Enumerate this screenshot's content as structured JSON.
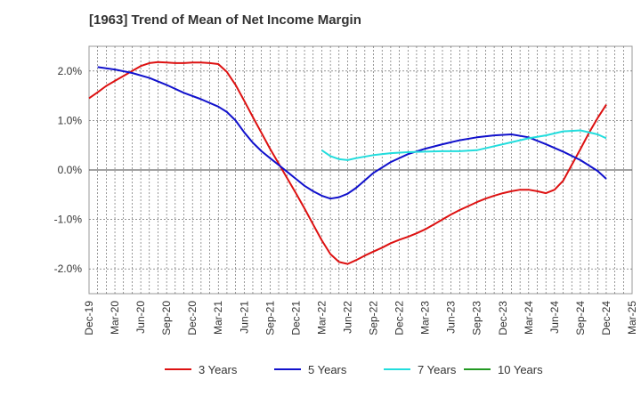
{
  "chart_data": {
    "type": "line",
    "title": "[1963]  Trend of Mean of Net Income Margin",
    "xlabel": "",
    "ylabel": "",
    "x_ticks": [
      "Dec-19",
      "Mar-20",
      "Jun-20",
      "Sep-20",
      "Dec-20",
      "Mar-21",
      "Jun-21",
      "Sep-21",
      "Dec-21",
      "Mar-22",
      "Jun-22",
      "Sep-22",
      "Dec-22",
      "Mar-23",
      "Jun-23",
      "Sep-23",
      "Dec-23",
      "Mar-24",
      "Jun-24",
      "Sep-24",
      "Dec-24",
      "Mar-25"
    ],
    "y_ticks": [
      "2.0%",
      "1.0%",
      "0.0%",
      "-1.0%",
      "-2.0%"
    ],
    "y_tick_values": [
      2.0,
      1.0,
      0.0,
      -1.0,
      -2.0
    ],
    "ylim": [
      -2.5,
      2.5
    ],
    "grid": true,
    "legend_position": "bottom",
    "series": [
      {
        "name": "3 Years",
        "color": "#dd1111",
        "x": [
          "Dec-19",
          "Jan-20",
          "Feb-20",
          "Mar-20",
          "Apr-20",
          "May-20",
          "Jun-20",
          "Jul-20",
          "Aug-20",
          "Sep-20",
          "Oct-20",
          "Nov-20",
          "Dec-20",
          "Jan-21",
          "Feb-21",
          "Mar-21",
          "Apr-21",
          "May-21",
          "Jun-21",
          "Jul-21",
          "Aug-21",
          "Sep-21",
          "Oct-21",
          "Nov-21",
          "Dec-21",
          "Jan-22",
          "Feb-22",
          "Mar-22",
          "Apr-22",
          "May-22",
          "Jun-22",
          "Jul-22",
          "Aug-22",
          "Sep-22",
          "Oct-22",
          "Nov-22",
          "Dec-22",
          "Jan-23",
          "Feb-23",
          "Mar-23",
          "Apr-23",
          "May-23",
          "Jun-23",
          "Jul-23",
          "Aug-23",
          "Sep-23",
          "Oct-23",
          "Nov-23",
          "Dec-23",
          "Jan-24",
          "Feb-24",
          "Mar-24",
          "Apr-24",
          "May-24",
          "Jun-24",
          "Jul-24",
          "Aug-24",
          "Sep-24",
          "Oct-24",
          "Nov-24",
          "Dec-24"
        ],
        "values": [
          1.45,
          1.57,
          1.7,
          1.8,
          1.9,
          2.0,
          2.1,
          2.16,
          2.18,
          2.17,
          2.16,
          2.16,
          2.17,
          2.17,
          2.16,
          2.14,
          1.98,
          1.72,
          1.4,
          1.07,
          0.75,
          0.43,
          0.13,
          -0.17,
          -0.47,
          -0.78,
          -1.1,
          -1.42,
          -1.7,
          -1.86,
          -1.9,
          -1.82,
          -1.73,
          -1.65,
          -1.57,
          -1.48,
          -1.41,
          -1.35,
          -1.28,
          -1.2,
          -1.1,
          -1.0,
          -0.9,
          -0.81,
          -0.73,
          -0.65,
          -0.58,
          -0.52,
          -0.47,
          -0.43,
          -0.4,
          -0.4,
          -0.43,
          -0.47,
          -0.4,
          -0.22,
          0.1,
          0.42,
          0.75,
          1.05,
          1.32
        ]
      },
      {
        "name": "5 Years",
        "color": "#1111cc",
        "x": [
          "Jan-20",
          "Mar-20",
          "May-20",
          "Jul-20",
          "Sep-20",
          "Nov-20",
          "Jan-21",
          "Mar-21",
          "Apr-21",
          "May-21",
          "Jun-21",
          "Jul-21",
          "Aug-21",
          "Sep-21",
          "Oct-21",
          "Nov-21",
          "Dec-21",
          "Jan-22",
          "Feb-22",
          "Mar-22",
          "Apr-22",
          "May-22",
          "Jun-22",
          "Jul-22",
          "Sep-22",
          "Nov-22",
          "Jan-23",
          "Mar-23",
          "May-23",
          "Jul-23",
          "Sep-23",
          "Nov-23",
          "Jan-24",
          "Mar-24",
          "May-24",
          "Jul-24",
          "Sep-24",
          "Nov-24",
          "Dec-24"
        ],
        "values": [
          2.08,
          2.03,
          1.96,
          1.86,
          1.72,
          1.56,
          1.43,
          1.28,
          1.17,
          1.0,
          0.76,
          0.55,
          0.38,
          0.24,
          0.1,
          -0.04,
          -0.18,
          -0.32,
          -0.43,
          -0.52,
          -0.58,
          -0.55,
          -0.48,
          -0.36,
          -0.06,
          0.16,
          0.32,
          0.43,
          0.52,
          0.6,
          0.66,
          0.7,
          0.72,
          0.66,
          0.52,
          0.37,
          0.2,
          -0.02,
          -0.18
        ]
      },
      {
        "name": "7 Years",
        "color": "#22dddd",
        "x": [
          "Mar-22",
          "Apr-22",
          "May-22",
          "Jun-22",
          "Jul-22",
          "Sep-22",
          "Nov-22",
          "Jan-23",
          "Mar-23",
          "May-23",
          "Jul-23",
          "Sep-23",
          "Nov-23",
          "Jan-24",
          "Mar-24",
          "May-24",
          "Jul-24",
          "Sep-24",
          "Nov-24",
          "Dec-24"
        ],
        "values": [
          0.4,
          0.28,
          0.22,
          0.2,
          0.24,
          0.3,
          0.34,
          0.36,
          0.37,
          0.38,
          0.38,
          0.4,
          0.48,
          0.56,
          0.64,
          0.7,
          0.78,
          0.8,
          0.72,
          0.64
        ]
      },
      {
        "name": "10 Years",
        "color": "#229922",
        "x": [],
        "values": []
      }
    ]
  }
}
